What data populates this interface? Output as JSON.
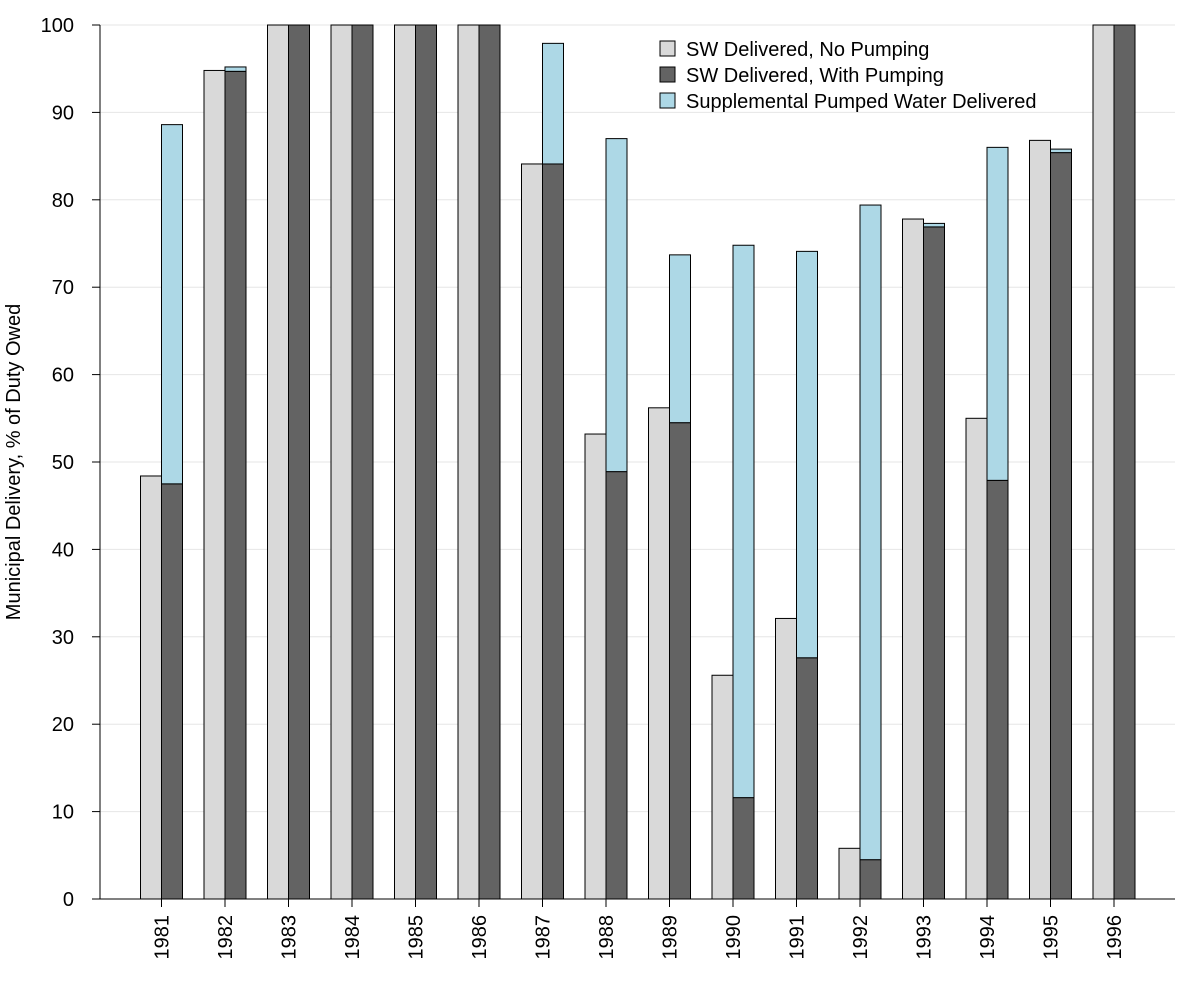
{
  "chart_data": {
    "type": "bar",
    "title": "",
    "xlabel": "",
    "ylabel": "Municipal Delivery, % of Duty Owed",
    "ylim": [
      0,
      100
    ],
    "yticks": [
      0,
      10,
      20,
      30,
      40,
      50,
      60,
      70,
      80,
      90,
      100
    ],
    "grid": "horizontal",
    "legend_position": "top-right",
    "categories": [
      "1981",
      "1982",
      "1983",
      "1984",
      "1985",
      "1986",
      "1987",
      "1988",
      "1989",
      "1990",
      "1991",
      "1992",
      "1993",
      "1994",
      "1995",
      "1996"
    ],
    "series": [
      {
        "name": "SW Delivered, No Pumping",
        "color": "#d9d9d9",
        "group": "left",
        "values": [
          48.4,
          94.8,
          100,
          100,
          100,
          100,
          84.1,
          53.2,
          56.2,
          25.6,
          32.1,
          5.8,
          77.8,
          55.0,
          86.8,
          100
        ]
      },
      {
        "name": "SW Delivered, With Pumping",
        "color": "#636363",
        "group": "right-stack",
        "values": [
          47.5,
          94.7,
          100,
          100,
          100,
          100,
          84.1,
          48.9,
          54.5,
          11.6,
          27.6,
          4.5,
          76.9,
          47.9,
          85.4,
          100
        ]
      },
      {
        "name": "Supplemental Pumped Water Delivered",
        "color": "#add8e6",
        "group": "right-stack",
        "values": [
          41.1,
          0.5,
          0,
          0,
          0,
          0,
          13.8,
          38.1,
          19.2,
          63.2,
          46.5,
          74.9,
          0.4,
          38.1,
          0.4,
          0
        ]
      }
    ]
  }
}
